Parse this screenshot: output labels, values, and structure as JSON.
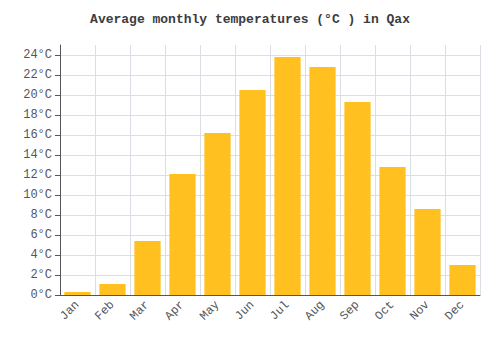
{
  "chart_data": {
    "type": "bar",
    "title": "Average monthly temperatures (°C ) in Qax",
    "categories": [
      "Jan",
      "Feb",
      "Mar",
      "Apr",
      "May",
      "Jun",
      "Jul",
      "Aug",
      "Sep",
      "Oct",
      "Nov",
      "Dec"
    ],
    "values": [
      0.3,
      1.1,
      5.4,
      12.1,
      16.2,
      20.5,
      23.8,
      22.8,
      19.3,
      12.8,
      8.6,
      3.0
    ],
    "color": "#FFC020",
    "ylim": [
      0,
      25
    ],
    "yticks": [
      {
        "value": 0,
        "label": "0°C"
      },
      {
        "value": 2,
        "label": "2°C"
      },
      {
        "value": 4,
        "label": "4°C"
      },
      {
        "value": 6,
        "label": "6°C"
      },
      {
        "value": 8,
        "label": "8°C"
      },
      {
        "value": 10,
        "label": "10°C"
      },
      {
        "value": 12,
        "label": "12°C"
      },
      {
        "value": 14,
        "label": "14°C"
      },
      {
        "value": 16,
        "label": "16°C"
      },
      {
        "value": 18,
        "label": "18°C"
      },
      {
        "value": 20,
        "label": "20°C"
      },
      {
        "value": 22,
        "label": "22°C"
      },
      {
        "value": 24,
        "label": "24°C"
      }
    ],
    "grid": true
  }
}
